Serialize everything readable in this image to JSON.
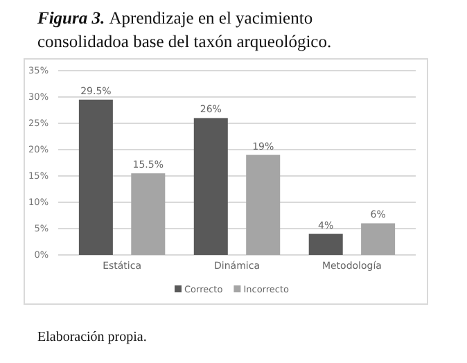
{
  "chart_data": {
    "type": "bar",
    "title": "Figura 3. Aprendizaje en el yacimiento consolidadoa base del taxón arqueológico.",
    "categories": [
      "Estática",
      "Dinámica",
      "Metodología"
    ],
    "series": [
      {
        "name": "Correcto",
        "color": "#595959",
        "values": [
          29.5,
          26,
          4
        ],
        "value_labels": [
          "29.5%",
          "26%",
          "4%"
        ]
      },
      {
        "name": "Incorrecto",
        "color": "#a5a5a5",
        "values": [
          15.5,
          19,
          6
        ],
        "value_labels": [
          "15.5%",
          "19%",
          "6%"
        ]
      }
    ],
    "ylim": [
      0,
      35
    ],
    "yticks": [
      {
        "value": 0,
        "label": "0%"
      },
      {
        "value": 5,
        "label": "5%"
      },
      {
        "value": 10,
        "label": "10%"
      },
      {
        "value": 15,
        "label": "15%"
      },
      {
        "value": 20,
        "label": "20%"
      },
      {
        "value": 25,
        "label": "25%"
      },
      {
        "value": 30,
        "label": "30%"
      },
      {
        "value": 35,
        "label": "35%"
      }
    ],
    "grid": "y",
    "legend": "bottom",
    "annotations": [
      "Elaboración propia."
    ]
  }
}
